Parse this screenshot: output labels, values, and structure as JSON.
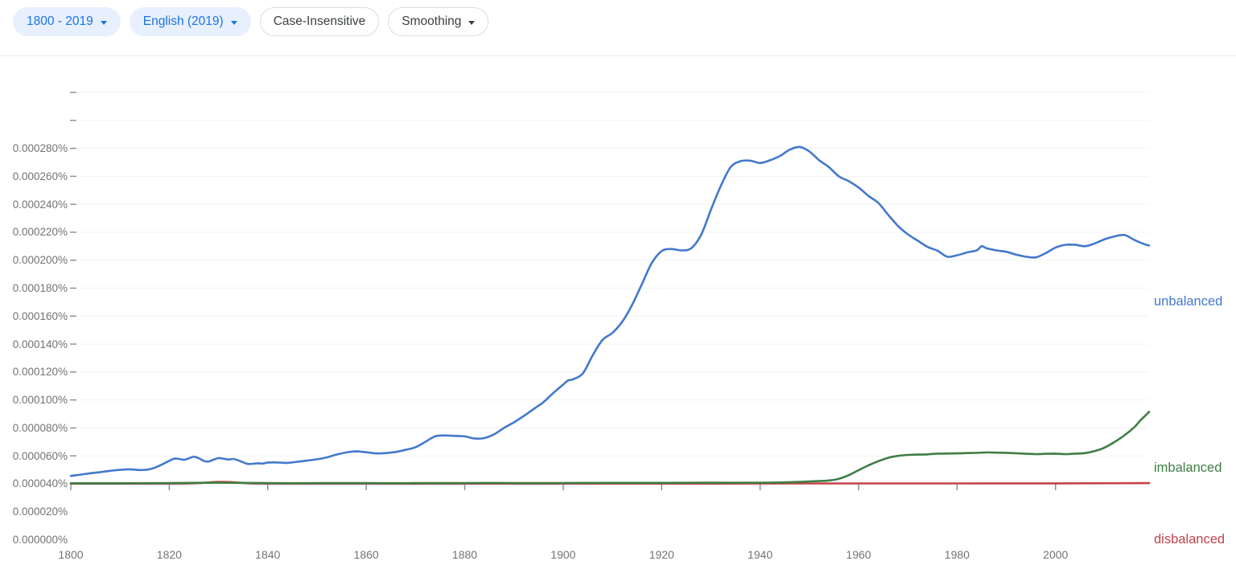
{
  "toolbar": {
    "buttons": [
      {
        "id": "year-range",
        "label": "1800 - 2019",
        "caret": true,
        "style": "active"
      },
      {
        "id": "corpus",
        "label": "English (2019)",
        "caret": true,
        "style": "active"
      },
      {
        "id": "case",
        "label": "Case-Insensitive",
        "caret": false,
        "style": "neutral"
      },
      {
        "id": "smoothing",
        "label": "Smoothing",
        "caret": true,
        "style": "neutral"
      }
    ]
  },
  "colors": {
    "active_pill_bg": "#e8f0fe",
    "active_pill_text": "#1a73e8",
    "neutral_pill_border": "#dadce0",
    "neutral_pill_text": "#3c4043",
    "axis_text": "#737373",
    "gridline": "#f1f3f4",
    "tick": "#8a8f94"
  },
  "chart_data": {
    "type": "line",
    "title": "",
    "xlabel": "",
    "ylabel": "",
    "grid": true,
    "legend_position": "line-end-labels-right",
    "x_axis": {
      "range": [
        1800,
        2019
      ],
      "ticks": [
        1800,
        1820,
        1840,
        1860,
        1880,
        1900,
        1920,
        1940,
        1960,
        1980,
        2000
      ]
    },
    "y_axis": {
      "range_percent": [
        0,
        0.00028
      ],
      "tick_step_percent": 2e-05,
      "tick_labels_bottom_to_top": [
        "0.000000%",
        "0.000020%",
        "0.000040%",
        "0.000060%",
        "0.000080%",
        "0.000100%",
        "0.000120%",
        "0.000140%",
        "0.000160%",
        "0.000180%",
        "0.000200%",
        "0.000220%",
        "0.000240%",
        "0.000260%",
        "0.000280%"
      ]
    },
    "value_unit": "percent x 1e-6 (usage frequency)",
    "series": [
      {
        "name": "unbalanced",
        "color": "#4379cc",
        "points": [
          [
            1800,
            5.7
          ],
          [
            1802,
            6.6
          ],
          [
            1804,
            7.6
          ],
          [
            1806,
            8.4
          ],
          [
            1808,
            9.3
          ],
          [
            1810,
            10.0
          ],
          [
            1812,
            10.4
          ],
          [
            1814,
            9.9
          ],
          [
            1816,
            10.4
          ],
          [
            1818,
            13.0
          ],
          [
            1820,
            16.5
          ],
          [
            1821,
            18.0
          ],
          [
            1822,
            17.8
          ],
          [
            1823,
            17.2
          ],
          [
            1824,
            18.3
          ],
          [
            1825,
            19.4
          ],
          [
            1826,
            18.3
          ],
          [
            1827,
            16.4
          ],
          [
            1828,
            16.0
          ],
          [
            1829,
            17.3
          ],
          [
            1830,
            18.4
          ],
          [
            1831,
            18.0
          ],
          [
            1832,
            17.4
          ],
          [
            1833,
            17.8
          ],
          [
            1834,
            16.8
          ],
          [
            1835,
            15.4
          ],
          [
            1836,
            14.2
          ],
          [
            1837,
            14.4
          ],
          [
            1838,
            14.7
          ],
          [
            1839,
            14.5
          ],
          [
            1840,
            15.2
          ],
          [
            1842,
            15.3
          ],
          [
            1844,
            15.0
          ],
          [
            1846,
            15.8
          ],
          [
            1848,
            16.6
          ],
          [
            1850,
            17.6
          ],
          [
            1852,
            18.9
          ],
          [
            1854,
            21.0
          ],
          [
            1856,
            22.5
          ],
          [
            1858,
            23.2
          ],
          [
            1860,
            22.6
          ],
          [
            1862,
            21.8
          ],
          [
            1864,
            22.0
          ],
          [
            1866,
            22.8
          ],
          [
            1868,
            24.3
          ],
          [
            1870,
            26.2
          ],
          [
            1872,
            30.0
          ],
          [
            1874,
            34.0
          ],
          [
            1876,
            34.6
          ],
          [
            1878,
            34.3
          ],
          [
            1880,
            34.0
          ],
          [
            1882,
            32.4
          ],
          [
            1884,
            32.8
          ],
          [
            1886,
            35.5
          ],
          [
            1888,
            40.0
          ],
          [
            1890,
            44.0
          ],
          [
            1892,
            48.5
          ],
          [
            1894,
            53.5
          ],
          [
            1896,
            58.5
          ],
          [
            1898,
            65.0
          ],
          [
            1900,
            71.0
          ],
          [
            1901,
            74.0
          ],
          [
            1902,
            74.8
          ],
          [
            1904,
            79.0
          ],
          [
            1906,
            92.0
          ],
          [
            1908,
            103.0
          ],
          [
            1910,
            108.0
          ],
          [
            1912,
            116.0
          ],
          [
            1914,
            128.0
          ],
          [
            1916,
            143.0
          ],
          [
            1918,
            158.0
          ],
          [
            1920,
            166.5
          ],
          [
            1922,
            168.0
          ],
          [
            1924,
            167.0
          ],
          [
            1926,
            168.5
          ],
          [
            1928,
            178.0
          ],
          [
            1930,
            196.0
          ],
          [
            1932,
            213.0
          ],
          [
            1934,
            226.5
          ],
          [
            1936,
            230.8
          ],
          [
            1938,
            231.2
          ],
          [
            1940,
            229.5
          ],
          [
            1942,
            231.5
          ],
          [
            1944,
            234.5
          ],
          [
            1946,
            239.0
          ],
          [
            1948,
            241.0
          ],
          [
            1950,
            237.8
          ],
          [
            1952,
            231.5
          ],
          [
            1954,
            226.5
          ],
          [
            1956,
            220.0
          ],
          [
            1958,
            216.5
          ],
          [
            1960,
            212.0
          ],
          [
            1962,
            206.0
          ],
          [
            1964,
            201.0
          ],
          [
            1966,
            192.5
          ],
          [
            1968,
            184.5
          ],
          [
            1970,
            178.5
          ],
          [
            1972,
            174.0
          ],
          [
            1974,
            169.5
          ],
          [
            1976,
            166.8
          ],
          [
            1978,
            162.5
          ],
          [
            1980,
            163.5
          ],
          [
            1982,
            165.5
          ],
          [
            1984,
            167.0
          ],
          [
            1985,
            170.0
          ],
          [
            1986,
            168.5
          ],
          [
            1988,
            167.0
          ],
          [
            1990,
            166.0
          ],
          [
            1992,
            164.0
          ],
          [
            1994,
            162.5
          ],
          [
            1996,
            162.0
          ],
          [
            1998,
            165.0
          ],
          [
            2000,
            169.0
          ],
          [
            2002,
            171.0
          ],
          [
            2004,
            171.0
          ],
          [
            2006,
            170.0
          ],
          [
            2008,
            172.0
          ],
          [
            2010,
            175.0
          ],
          [
            2012,
            177.0
          ],
          [
            2014,
            178.0
          ],
          [
            2016,
            174.5
          ],
          [
            2018,
            171.5
          ],
          [
            2019,
            170.5
          ]
        ]
      },
      {
        "name": "imbalanced",
        "color": "#3e7e44",
        "points": [
          [
            1800,
            0.4
          ],
          [
            1810,
            0.4
          ],
          [
            1820,
            0.5
          ],
          [
            1830,
            0.8
          ],
          [
            1840,
            0.5
          ],
          [
            1850,
            0.5
          ],
          [
            1860,
            0.5
          ],
          [
            1870,
            0.5
          ],
          [
            1880,
            0.6
          ],
          [
            1890,
            0.6
          ],
          [
            1900,
            0.6
          ],
          [
            1910,
            0.7
          ],
          [
            1920,
            0.7
          ],
          [
            1930,
            0.8
          ],
          [
            1940,
            0.8
          ],
          [
            1944,
            1.0
          ],
          [
            1948,
            1.4
          ],
          [
            1950,
            1.7
          ],
          [
            1952,
            2.0
          ],
          [
            1954,
            2.4
          ],
          [
            1956,
            3.6
          ],
          [
            1958,
            6.2
          ],
          [
            1960,
            9.8
          ],
          [
            1962,
            13.2
          ],
          [
            1964,
            16.2
          ],
          [
            1966,
            18.6
          ],
          [
            1968,
            20.0
          ],
          [
            1970,
            20.7
          ],
          [
            1972,
            20.9
          ],
          [
            1974,
            21.1
          ],
          [
            1976,
            21.6
          ],
          [
            1978,
            21.7
          ],
          [
            1980,
            21.8
          ],
          [
            1982,
            22.0
          ],
          [
            1984,
            22.2
          ],
          [
            1986,
            22.5
          ],
          [
            1988,
            22.3
          ],
          [
            1990,
            22.2
          ],
          [
            1992,
            21.9
          ],
          [
            1994,
            21.5
          ],
          [
            1996,
            21.3
          ],
          [
            1998,
            21.5
          ],
          [
            2000,
            21.6
          ],
          [
            2002,
            21.3
          ],
          [
            2004,
            21.6
          ],
          [
            2006,
            22.0
          ],
          [
            2008,
            23.5
          ],
          [
            2010,
            26.0
          ],
          [
            2012,
            30.0
          ],
          [
            2014,
            34.7
          ],
          [
            2016,
            40.5
          ],
          [
            2017,
            44.5
          ],
          [
            2018,
            48.0
          ],
          [
            2019,
            51.5
          ]
        ]
      },
      {
        "name": "disbalanced",
        "color": "#c4444a",
        "points": [
          [
            1800,
            0.15
          ],
          [
            1810,
            0.15
          ],
          [
            1820,
            0.2
          ],
          [
            1824,
            0.3
          ],
          [
            1826,
            0.5
          ],
          [
            1828,
            1.0
          ],
          [
            1830,
            1.4
          ],
          [
            1832,
            1.3
          ],
          [
            1834,
            0.9
          ],
          [
            1836,
            0.4
          ],
          [
            1838,
            0.25
          ],
          [
            1840,
            0.2
          ],
          [
            1860,
            0.15
          ],
          [
            1880,
            0.15
          ],
          [
            1900,
            0.2
          ],
          [
            1920,
            0.2
          ],
          [
            1940,
            0.25
          ],
          [
            1960,
            0.3
          ],
          [
            1980,
            0.3
          ],
          [
            2000,
            0.35
          ],
          [
            2019,
            0.5
          ]
        ]
      }
    ]
  }
}
